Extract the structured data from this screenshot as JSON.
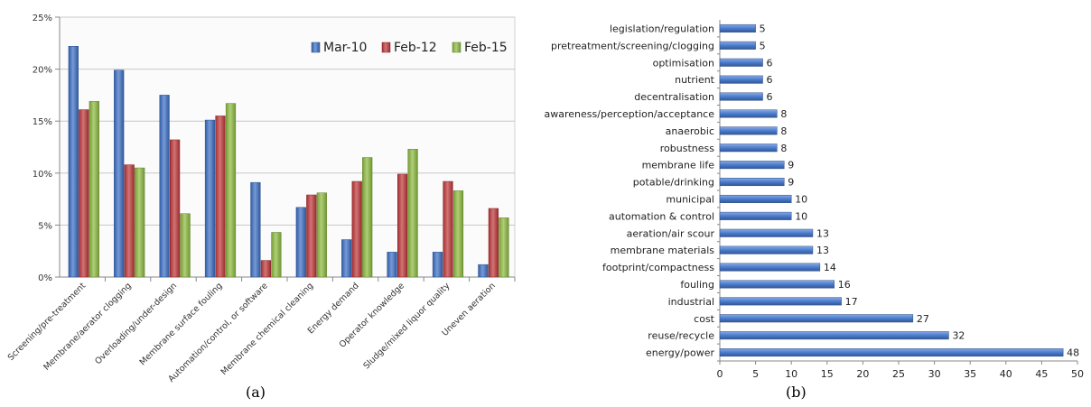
{
  "chart_data": [
    {
      "type": "bar",
      "categories": [
        "Screening/pre-treatment",
        "Membrane/aerator clogging",
        "Overloading/under-design",
        "Membrane surface fouling",
        "Automation/control, or software",
        "Membrane chemical cleaning",
        "Energy demand",
        "Operator knowledge",
        "Sludge/mixed liquor quality",
        "Uneven aeration"
      ],
      "series": [
        {
          "name": "Mar-10",
          "color": "#3B6FC6",
          "values": [
            22.2,
            19.9,
            17.5,
            15.1,
            9.1,
            6.7,
            3.6,
            2.4,
            2.4,
            1.2
          ]
        },
        {
          "name": "Feb-12",
          "color": "#C0373A",
          "values": [
            16.1,
            10.8,
            13.2,
            15.5,
            1.6,
            7.9,
            9.2,
            9.9,
            9.2,
            6.6
          ]
        },
        {
          "name": "Feb-15",
          "color": "#8DBB3E",
          "values": [
            16.9,
            10.5,
            6.1,
            16.7,
            4.3,
            8.1,
            11.5,
            12.3,
            8.3,
            5.7
          ]
        }
      ],
      "yticks": [
        "0%",
        "5%",
        "10%",
        "15%",
        "20%",
        "25%"
      ],
      "ylim": [
        0,
        25
      ],
      "grid": true,
      "legend": "top-right",
      "panel_label": "(a)"
    },
    {
      "type": "bar",
      "orientation": "horizontal",
      "categories": [
        "energy/power",
        "reuse/recycle",
        "cost",
        "industrial",
        "fouling",
        "footprint/compactness",
        "membrane materials",
        "aeration/air scour",
        "automation & control",
        "municipal",
        "potable/drinking",
        "membrane life",
        "robustness",
        "anaerobic",
        "awareness/perception/acceptance",
        "decentralisation",
        "nutrient",
        "optimisation",
        "pretreatment/screening/clogging",
        "legislation/regulation"
      ],
      "values": [
        48,
        32,
        27,
        17,
        16,
        14,
        13,
        13,
        10,
        10,
        9,
        9,
        8,
        8,
        8,
        6,
        6,
        6,
        5,
        5
      ],
      "color": "#4A7CD0",
      "xticks": [
        "0",
        "5",
        "10",
        "15",
        "20",
        "25",
        "30",
        "35",
        "40",
        "45",
        "50"
      ],
      "xlim": [
        0,
        50
      ],
      "grid": false,
      "panel_label": "(b)"
    }
  ]
}
